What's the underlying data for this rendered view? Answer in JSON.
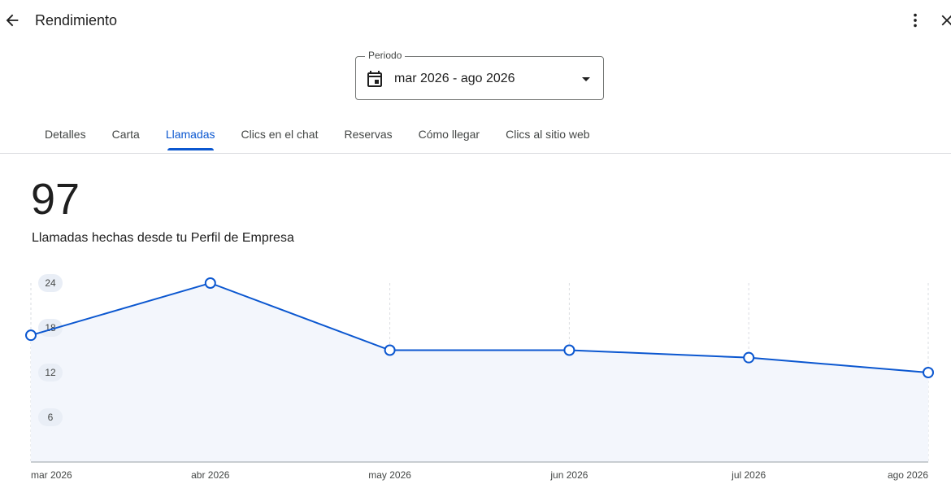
{
  "header": {
    "title": "Rendimiento"
  },
  "period": {
    "label": "Periodo",
    "value": "mar 2026 - ago 2026"
  },
  "tabs": [
    "Detalles",
    "Carta",
    "Llamadas",
    "Clics en el chat",
    "Reservas",
    "Cómo llegar",
    "Clics al sitio web"
  ],
  "metric": {
    "value": 97,
    "label": "Llamadas hechas desde tu Perfil de Empresa"
  },
  "chart_data": {
    "type": "line",
    "categories": [
      "mar 2026",
      "abr 2026",
      "may 2026",
      "jun 2026",
      "jul 2026",
      "ago 2026"
    ],
    "values": [
      17,
      24,
      15,
      15,
      14,
      12
    ],
    "color": "#0b57d0",
    "area_color": "#f3f6fc",
    "ylim": [
      0,
      24
    ],
    "yticks": [
      6,
      12,
      18,
      24
    ],
    "grid": true
  }
}
